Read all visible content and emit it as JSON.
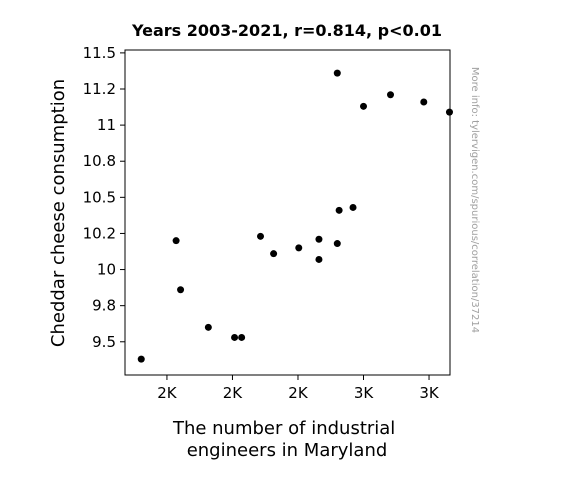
{
  "chart_data": {
    "type": "scatter",
    "title": "Years 2003-2021, r=0.814, p<0.01",
    "xlabel": [
      "The number of industrial",
      "engineers in Maryland"
    ],
    "ylabel": "Cheddar cheese consumption",
    "side_note": "More info: tylervigen.com/spurious/correlation/37214",
    "xlim": [
      1740,
      2980
    ],
    "ylim": [
      9.27,
      11.52
    ],
    "x_ticks": [
      {
        "value": 1900,
        "label": "2K"
      },
      {
        "value": 2150,
        "label": "2K"
      },
      {
        "value": 2400,
        "label": "2K"
      },
      {
        "value": 2650,
        "label": "3K"
      },
      {
        "value": 2900,
        "label": "3K"
      }
    ],
    "y_ticks": [
      {
        "value": 9.5,
        "label": "9.5"
      },
      {
        "value": 9.75,
        "label": "9.8"
      },
      {
        "value": 10.0,
        "label": "10"
      },
      {
        "value": 10.25,
        "label": "10.2"
      },
      {
        "value": 10.5,
        "label": "10.5"
      },
      {
        "value": 10.75,
        "label": "10.8"
      },
      {
        "value": 11.0,
        "label": "11"
      },
      {
        "value": 11.25,
        "label": "11.2"
      },
      {
        "value": 11.5,
        "label": "11.5"
      }
    ],
    "points": [
      {
        "x": 1802,
        "y": 9.38
      },
      {
        "x": 1935,
        "y": 10.2
      },
      {
        "x": 1952,
        "y": 9.86
      },
      {
        "x": 2058,
        "y": 9.6
      },
      {
        "x": 2158,
        "y": 9.53
      },
      {
        "x": 2185,
        "y": 9.53
      },
      {
        "x": 2257,
        "y": 10.23
      },
      {
        "x": 2307,
        "y": 10.11
      },
      {
        "x": 2403,
        "y": 10.15
      },
      {
        "x": 2480,
        "y": 10.07
      },
      {
        "x": 2480,
        "y": 10.21
      },
      {
        "x": 2550,
        "y": 10.18
      },
      {
        "x": 2550,
        "y": 11.36
      },
      {
        "x": 2557,
        "y": 10.41
      },
      {
        "x": 2610,
        "y": 10.43
      },
      {
        "x": 2650,
        "y": 11.13
      },
      {
        "x": 2753,
        "y": 11.21
      },
      {
        "x": 2880,
        "y": 11.16
      },
      {
        "x": 2978,
        "y": 11.09
      }
    ]
  }
}
